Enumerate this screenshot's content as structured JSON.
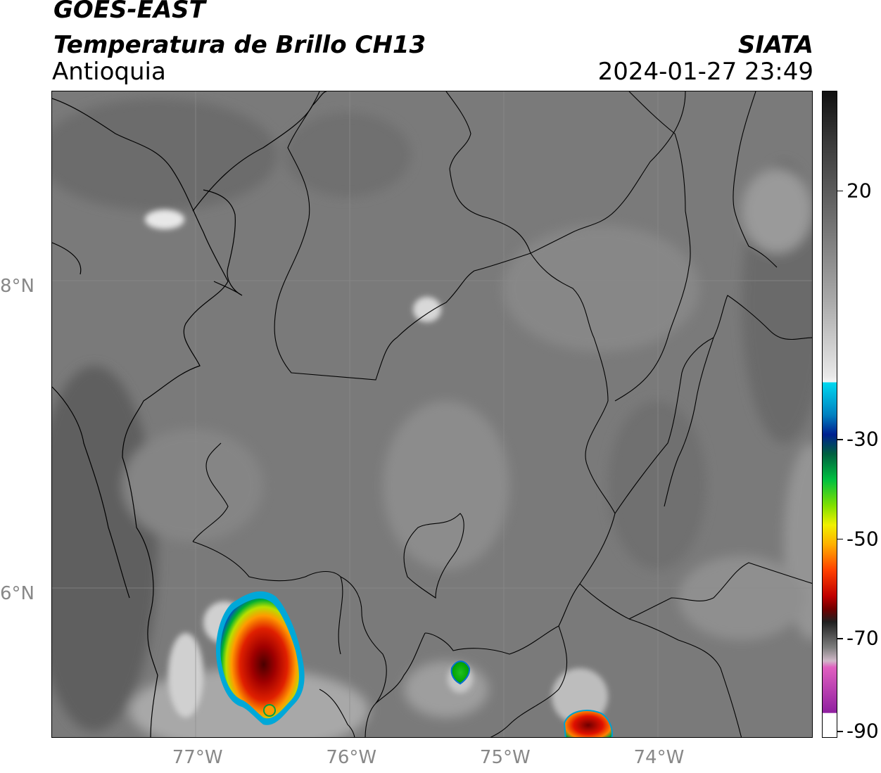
{
  "header": {
    "satellite": "GOES-EAST",
    "product": "Temperatura de Brillo CH13",
    "region": "Antioquia",
    "organization": "SIATA",
    "datetime": "2024-01-27 23:49"
  },
  "axes": {
    "latitude_labels": [
      {
        "label": "8°N",
        "value": 8
      },
      {
        "label": "6°N",
        "value": 6
      }
    ],
    "longitude_labels": [
      {
        "label": "77°W",
        "value": -77
      },
      {
        "label": "76°W",
        "value": -76
      },
      {
        "label": "75°W",
        "value": -75
      },
      {
        "label": "74°W",
        "value": -74
      }
    ],
    "lon_range": [
      -77.95,
      -73.0
    ],
    "lat_range": [
      5.07,
      9.28
    ]
  },
  "colorbar": {
    "range": [
      -90,
      40
    ],
    "ticks": [
      {
        "label": "20",
        "value": 20
      },
      {
        "label": "-30",
        "value": -30
      },
      {
        "label": "-50",
        "value": -50
      },
      {
        "label": "-70",
        "value": -70
      },
      {
        "label": "-90",
        "value": -90
      }
    ]
  },
  "colors": {
    "background_gray": "#7a7a7a",
    "border_line": "#000000",
    "grid_line": "#8c8c8c"
  }
}
